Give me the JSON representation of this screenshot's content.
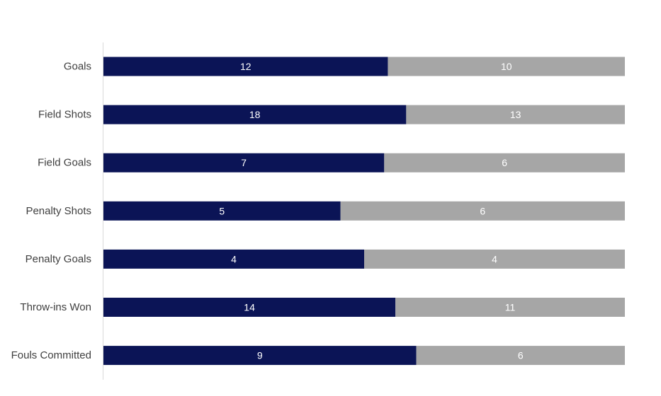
{
  "chart_data": {
    "type": "bar",
    "orientation": "horizontal",
    "stacked": "100%",
    "categories": [
      "Goals",
      "Field Shots",
      "Field Goals",
      "Penalty Shots",
      "Penalty Goals",
      "Throw-ins Won",
      "Fouls Committed"
    ],
    "series": [
      {
        "values": [
          12,
          18,
          7,
          5,
          4,
          14,
          9
        ],
        "color": "#0b1456"
      },
      {
        "values": [
          10,
          13,
          6,
          6,
          4,
          11,
          6
        ],
        "color": "#a6a6a6"
      }
    ],
    "title": "",
    "xlabel": "",
    "ylabel": "",
    "grid": false,
    "legend": "none"
  }
}
